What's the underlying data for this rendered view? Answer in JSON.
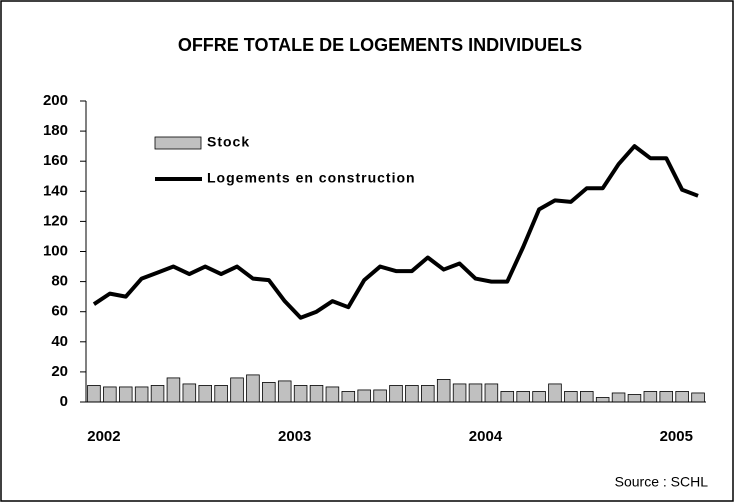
{
  "chart_data": {
    "type": "bar-line",
    "title": "OFFRE TOTALE DE LOGEMENTS INDIVIDUELS",
    "source": "Source : SCHL",
    "categories": [
      "2002",
      null,
      null,
      null,
      null,
      null,
      null,
      null,
      null,
      null,
      null,
      null,
      "2003",
      null,
      null,
      null,
      null,
      null,
      null,
      null,
      null,
      null,
      null,
      null,
      "2004",
      null,
      null,
      null,
      null,
      null,
      null,
      null,
      null,
      null,
      null,
      null,
      "2005",
      null,
      null
    ],
    "series": [
      {
        "name": "Stock",
        "type": "bar",
        "color": "#c0c0c0",
        "values": [
          11,
          10,
          10,
          10,
          11,
          16,
          12,
          11,
          11,
          16,
          18,
          13,
          14,
          11,
          11,
          10,
          7,
          8,
          8,
          11,
          11,
          11,
          15,
          12,
          12,
          12,
          7,
          7,
          7,
          12,
          7,
          7,
          3,
          6,
          5,
          7,
          7,
          7,
          6
        ]
      },
      {
        "name": "Logements en construction",
        "type": "line",
        "color": "#000000",
        "values": [
          65,
          72,
          70,
          82,
          86,
          90,
          85,
          90,
          85,
          90,
          82,
          81,
          67,
          56,
          60,
          67,
          63,
          81,
          90,
          87,
          87,
          96,
          88,
          92,
          82,
          80,
          80,
          103,
          128,
          134,
          133,
          142,
          142,
          158,
          170,
          162,
          162,
          141,
          137
        ]
      }
    ],
    "ylim": [
      0,
      200
    ],
    "yticks": [
      0,
      20,
      40,
      60,
      80,
      100,
      120,
      140,
      160,
      180,
      200
    ],
    "grid": false
  }
}
